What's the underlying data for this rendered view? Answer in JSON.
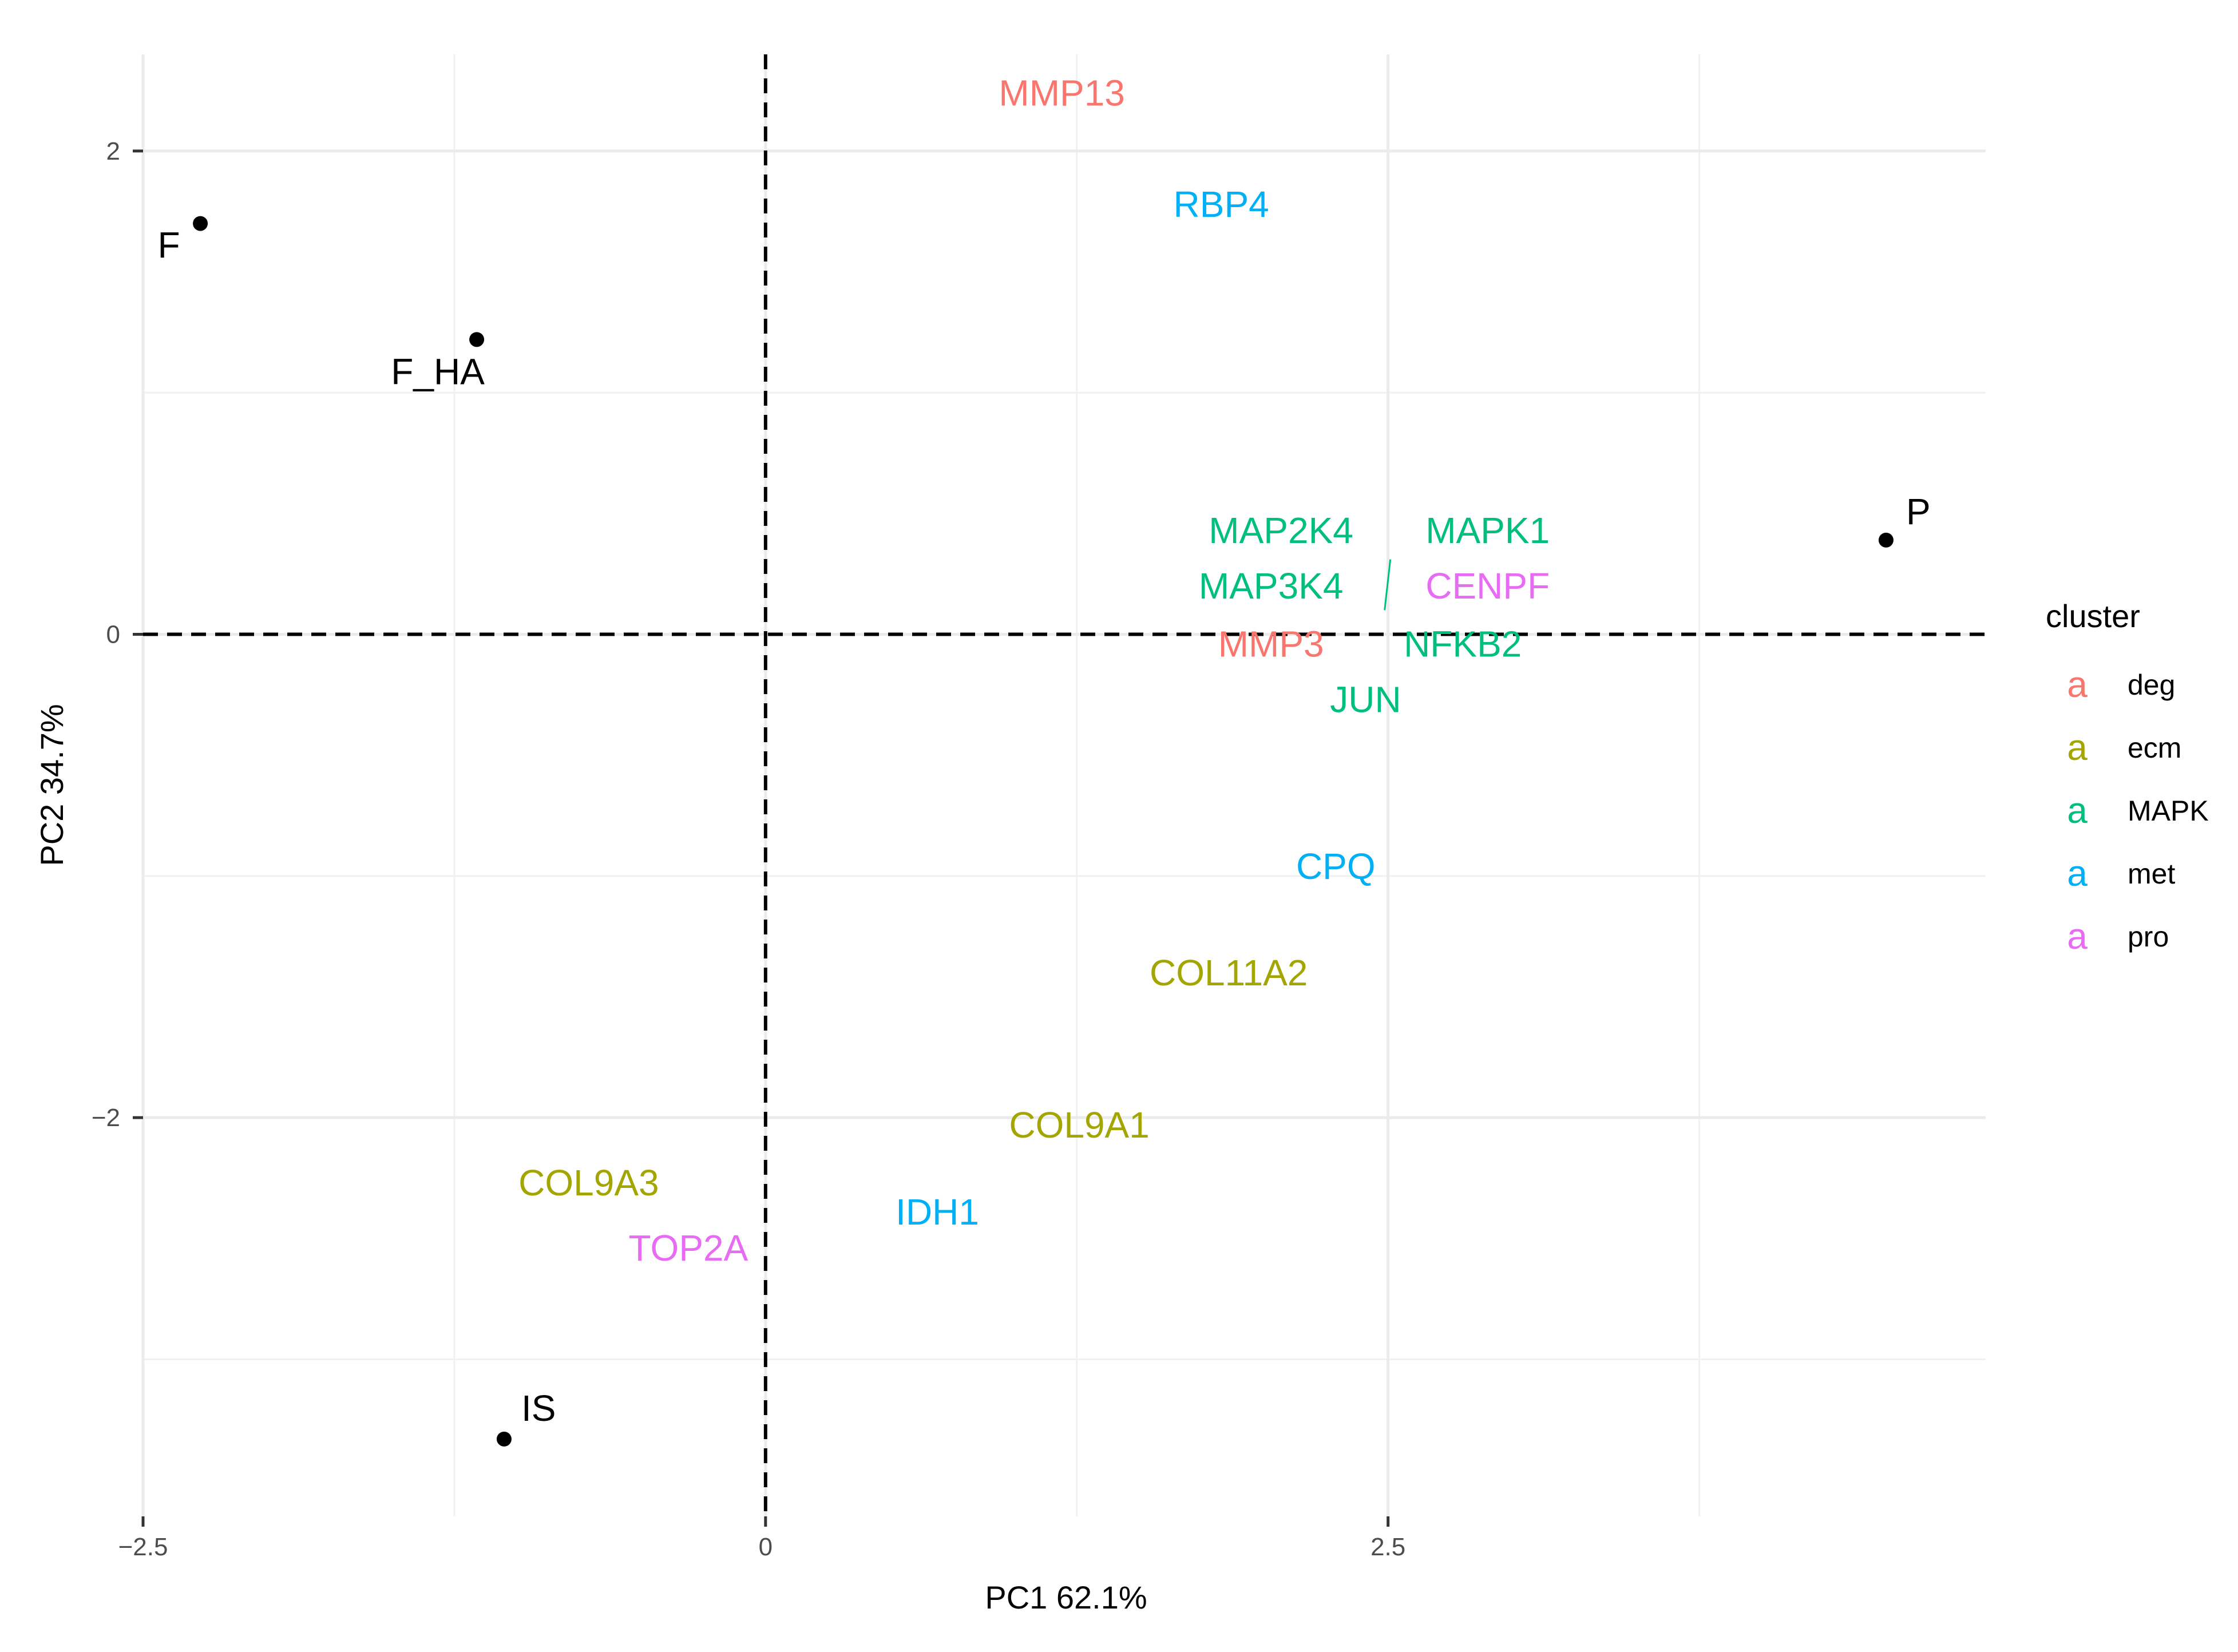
{
  "chart_data": {
    "type": "scatter",
    "xlabel": "PC1 62.1%",
    "ylabel": "PC2 34.7%",
    "xlim": [
      -2.5,
      4.9
    ],
    "ylim": [
      -3.65,
      2.4
    ],
    "x_ticks": [
      -2.5,
      0,
      2.5
    ],
    "x_tick_labels": [
      "−2.5",
      "0",
      "2.5"
    ],
    "y_ticks": [
      -2,
      0,
      2
    ],
    "y_tick_labels": [
      "−2",
      "0",
      "2"
    ],
    "grid": true,
    "reference_lines": {
      "x": 0,
      "y": 0,
      "style": "dashed"
    },
    "samples": [
      {
        "label": "F",
        "x": -2.27,
        "y": 1.7
      },
      {
        "label": "F_HA",
        "x": -1.16,
        "y": 1.22
      },
      {
        "label": "P",
        "x": 4.5,
        "y": 0.39
      },
      {
        "label": "IS",
        "x": -1.05,
        "y": -3.33
      }
    ],
    "genes": [
      {
        "label": "MMP13",
        "cluster": "deg",
        "x": 1.19,
        "y": 2.24
      },
      {
        "label": "RBP4",
        "cluster": "met",
        "x": 1.83,
        "y": 1.78
      },
      {
        "label": "MAP2K4",
        "cluster": "MAPK",
        "x": 2.07,
        "y": 0.43
      },
      {
        "label": "MAPK1",
        "cluster": "MAPK",
        "x": 2.9,
        "y": 0.43
      },
      {
        "label": "MAP3K4",
        "cluster": "MAPK",
        "x": 2.03,
        "y": 0.2
      },
      {
        "label": "CENPF",
        "cluster": "pro",
        "x": 2.9,
        "y": 0.2
      },
      {
        "label": "MMP3",
        "cluster": "deg",
        "x": 2.03,
        "y": -0.04
      },
      {
        "label": "NFKB2",
        "cluster": "MAPK",
        "x": 2.8,
        "y": -0.04
      },
      {
        "label": "JUN",
        "cluster": "MAPK",
        "x": 2.41,
        "y": -0.27
      },
      {
        "label": "CPQ",
        "cluster": "met",
        "x": 2.29,
        "y": -0.96
      },
      {
        "label": "COL11A2",
        "cluster": "ecm",
        "x": 1.86,
        "y": -1.4
      },
      {
        "label": "COL9A1",
        "cluster": "ecm",
        "x": 1.26,
        "y": -2.03
      },
      {
        "label": "COL9A3",
        "cluster": "ecm",
        "x": -0.71,
        "y": -2.27
      },
      {
        "label": "IDH1",
        "cluster": "met",
        "x": 0.69,
        "y": -2.39
      },
      {
        "label": "TOP2A",
        "cluster": "pro",
        "x": -0.31,
        "y": -2.54
      }
    ],
    "legend": {
      "title": "cluster",
      "placement": "right",
      "key_glyph": "a",
      "entries": [
        {
          "name": "deg",
          "color": "#F8766D"
        },
        {
          "name": "ecm",
          "color": "#A3A500"
        },
        {
          "name": "MAPK",
          "color": "#00BF7D"
        },
        {
          "name": "met",
          "color": "#00B0F6"
        },
        {
          "name": "pro",
          "color": "#E76BF3"
        }
      ]
    }
  }
}
